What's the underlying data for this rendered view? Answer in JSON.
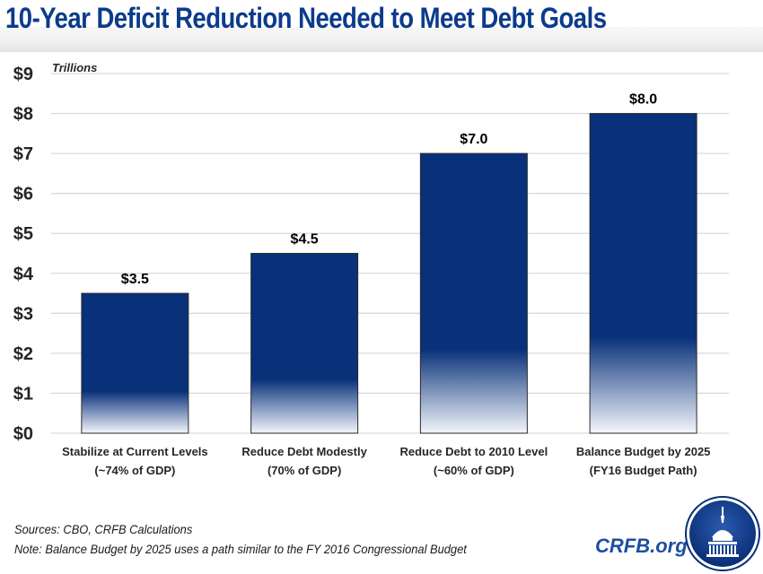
{
  "title": "10-Year Deficit Reduction Needed to Meet Debt Goals",
  "chart_data": {
    "type": "bar",
    "title": "10-Year Deficit Reduction Needed to Meet Debt Goals",
    "ylabel": "Trillions",
    "xlabel": "",
    "ylim": [
      0,
      9
    ],
    "yticks": [
      0,
      1,
      2,
      3,
      4,
      5,
      6,
      7,
      8,
      9
    ],
    "ytick_labels": [
      "$0",
      "$1",
      "$2",
      "$3",
      "$4",
      "$5",
      "$6",
      "$7",
      "$8",
      "$9"
    ],
    "grid": true,
    "legend": "none",
    "categories": [
      [
        "Stabilize at Current Levels",
        "(~74% of GDP)"
      ],
      [
        "Reduce Debt Modestly",
        "(70% of GDP)"
      ],
      [
        "Reduce Debt to 2010 Level",
        "(~60% of GDP)"
      ],
      [
        "Balance Budget by 2025",
        "(FY16 Budget Path)"
      ]
    ],
    "values": [
      3.5,
      4.5,
      7.0,
      8.0
    ],
    "data_labels": [
      "$3.5",
      "$4.5",
      "$7.0",
      "$8.0"
    ],
    "colors": {
      "bar": "#08317a",
      "bar_fade": "#f4f6fb",
      "grid": "#d9d9d9",
      "title": "#0b3b8c"
    }
  },
  "footer": {
    "sources": "Sources: CBO, CRFB Calculations",
    "note": "Note: Balance Budget by 2025 uses a path similar to the FY 2016 Congressional Budget",
    "brand": "CRFB.org",
    "logo_icon": "capitol-dome-logo"
  }
}
